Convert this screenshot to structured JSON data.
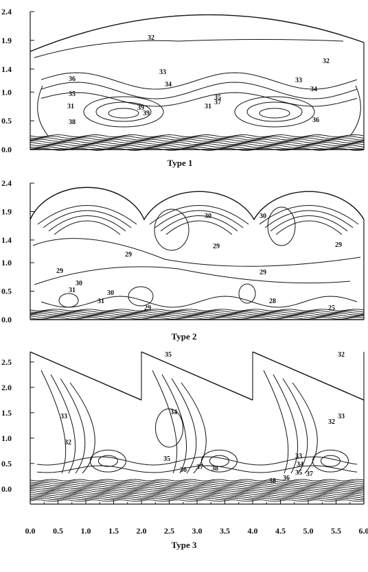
{
  "chart_data": [
    {
      "type": "contour",
      "title": "Type 1",
      "yticks": [
        "2.4",
        "1.9",
        "1.4",
        "1.0",
        "0.5",
        "0.0"
      ],
      "ylim": [
        0.0,
        2.4
      ],
      "xlim": [
        0.0,
        6.0
      ],
      "roof": "single-arch",
      "contour_labels": [
        "32",
        "32",
        "33",
        "33",
        "34",
        "34",
        "35",
        "35",
        "36",
        "36",
        "37",
        "38",
        "39",
        "39",
        "31",
        "31"
      ]
    },
    {
      "type": "contour",
      "title": "Type 2",
      "yticks": [
        "2.4",
        "1.9",
        "1.4",
        "1.0",
        "0.5",
        "0.0"
      ],
      "ylim": [
        0.0,
        2.4
      ],
      "xlim": [
        0.0,
        6.0
      ],
      "roof": "triple-arch",
      "contour_labels": [
        "30",
        "30",
        "29",
        "29",
        "29",
        "29",
        "29",
        "30",
        "30",
        "31",
        "31",
        "28",
        "29",
        "25"
      ]
    },
    {
      "type": "contour",
      "title": "Type 3",
      "yticks": [
        "2.5",
        "2.0",
        "1.5",
        "1.0",
        "0.5",
        "0.0"
      ],
      "xticks": [
        "0.0",
        "0.5",
        "1.0",
        "1.5",
        "2.0",
        "2.5",
        "3.0",
        "3.5",
        "4.0",
        "4.5",
        "5.0",
        "5.5",
        "6.0"
      ],
      "ylim": [
        -0.3,
        2.7
      ],
      "xlim": [
        0.0,
        6.0
      ],
      "roof": "sawtooth",
      "contour_labels": [
        "33",
        "32",
        "35",
        "34",
        "35",
        "36",
        "37",
        "38",
        "32",
        "33",
        "34",
        "35",
        "36",
        "37",
        "38",
        "32",
        "33"
      ]
    }
  ]
}
